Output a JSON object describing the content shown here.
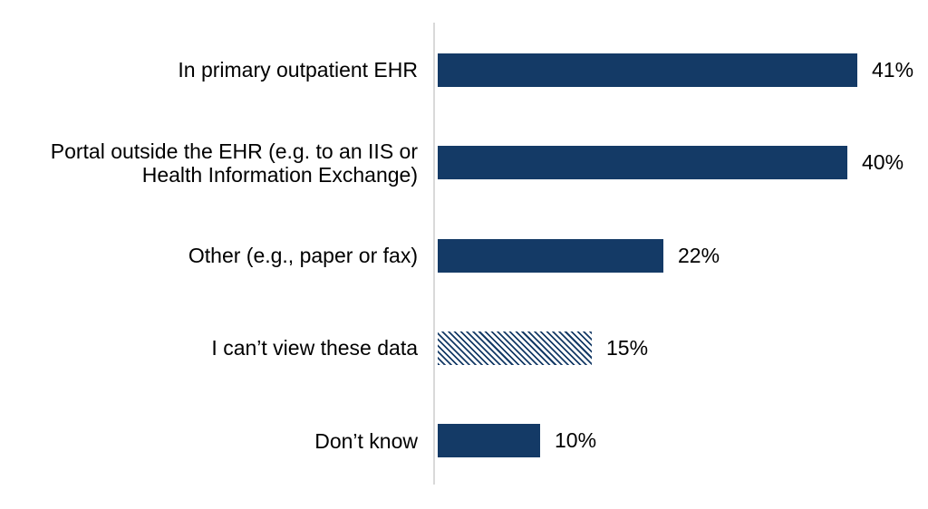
{
  "chart": {
    "background": "#FFFFFF",
    "bar_color": "#143A66",
    "axis_color": "#D9D9D9",
    "rows": [
      {
        "label": "In primary outpatient EHR",
        "value": 41,
        "value_label": "41%",
        "pattern": "solid"
      },
      {
        "label": "Portal outside the EHR (e.g. to an IIS or Health Information Exchange)",
        "value": 40,
        "value_label": "40%",
        "pattern": "solid"
      },
      {
        "label": "Other (e.g., paper or fax)",
        "value": 22,
        "value_label": "22%",
        "pattern": "solid"
      },
      {
        "label": "I can’t view these data",
        "value": 15,
        "value_label": "15%",
        "pattern": "hatch"
      },
      {
        "label": "Don’t know",
        "value": 10,
        "value_label": "10%",
        "pattern": "solid"
      }
    ]
  },
  "chart_data": {
    "type": "bar",
    "orientation": "horizontal",
    "title": "",
    "xlabel": "",
    "ylabel": "",
    "categories": [
      "In primary outpatient EHR",
      "Portal outside the EHR (e.g. to an IIS or Health Information Exchange)",
      "Other (e.g., paper or fax)",
      "I can’t view these data",
      "Don’t know"
    ],
    "values": [
      41,
      40,
      22,
      15,
      10
    ],
    "data_labels": [
      "41%",
      "40%",
      "22%",
      "15%",
      "10%"
    ],
    "unit": "%",
    "xlim": [
      0,
      45
    ],
    "grid": false,
    "legend": false,
    "bar_color": "#143A66",
    "hatched_category": "I can’t view these data",
    "hatch_style": "diagonal-stripes"
  }
}
